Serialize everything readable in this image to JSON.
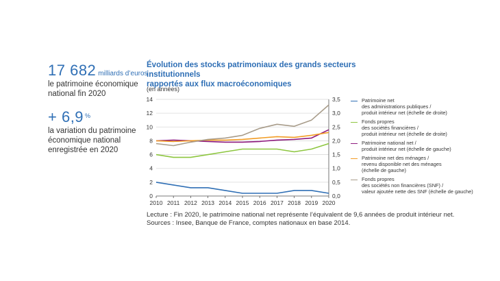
{
  "kpis": [
    {
      "value": "17 682",
      "unit": "milliards d’euros",
      "desc_line1": "le patrimoine économique",
      "desc_line2": "national fin 2020",
      "desc_line3": ""
    },
    {
      "value": "+ 6,9",
      "unit": "%",
      "desc_line1": "la variation du patrimoine",
      "desc_line2": "économique national",
      "desc_line3": "enregistrée en 2020"
    }
  ],
  "chart_title_line1": "Évolution des stocks patrimoniaux des grands secteurs institutionnels",
  "chart_title_line2": "rapportés aux flux macroéconomiques",
  "chart_unit": "(en années)",
  "footer_line1": "Lecture : Fin 2020, le patrimoine national net représente l’équivalent de 9,6 années de produit intérieur net.",
  "footer_line2": "Sources : Insee, Banque de France, comptes nationaux en base 2014.",
  "chart_data": {
    "type": "line",
    "x": [
      2010,
      2011,
      2012,
      2013,
      2014,
      2015,
      2016,
      2017,
      2018,
      2019,
      2020
    ],
    "y_left": {
      "min": 0,
      "max": 14,
      "ticks": [
        "0",
        "2",
        "4",
        "6",
        "8",
        "10",
        "12",
        "14"
      ]
    },
    "y_right": {
      "min": 0,
      "max": 3.5,
      "ticks": [
        "0,0",
        "0,5",
        "1,0",
        "1,5",
        "2,0",
        "2,5",
        "3,0",
        "3,5"
      ]
    },
    "series": [
      {
        "name": "Patrimoine net\ndes administrations publiques /\nproduit intérieur net (échelle de droite)",
        "axis": "right",
        "color": "#2f6fb5",
        "values": [
          0.5,
          0.4,
          0.3,
          0.3,
          0.2,
          0.1,
          0.1,
          0.1,
          0.2,
          0.2,
          0.1
        ]
      },
      {
        "name": "Fonds propres\ndes sociétés financières /\nproduit intérieur net (échelle de droite)",
        "axis": "right",
        "color": "#8dc63f",
        "values": [
          1.5,
          1.4,
          1.4,
          1.5,
          1.6,
          1.7,
          1.7,
          1.7,
          1.6,
          1.7,
          1.9
        ]
      },
      {
        "name": "Patrimoine national net /\nproduit intérieur net (échelle de gauche)",
        "axis": "left",
        "color": "#8e1a7e",
        "values": [
          8.0,
          8.1,
          8.0,
          7.9,
          7.8,
          7.8,
          7.9,
          8.1,
          8.2,
          8.4,
          9.6
        ]
      },
      {
        "name": "Patrimoine net des ménages /\nrevenu disponible net des ménages\n(échelle de gauche)",
        "axis": "left",
        "color": "#f29c24",
        "values": [
          8.0,
          7.9,
          8.0,
          8.1,
          8.1,
          8.2,
          8.4,
          8.6,
          8.5,
          8.8,
          9.2
        ]
      },
      {
        "name": "Fonds propres\ndes sociétés non financières (SNF) /\nvaleur ajoutée nette des SNF (échelle de gauche)",
        "axis": "left",
        "color": "#a89c8a",
        "values": [
          7.6,
          7.3,
          7.8,
          8.2,
          8.4,
          8.8,
          9.8,
          10.4,
          10.1,
          11.0,
          13.2
        ]
      }
    ]
  }
}
